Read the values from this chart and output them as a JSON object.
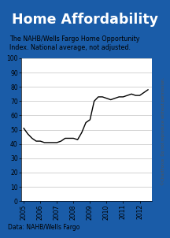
{
  "title": "Home Affordability",
  "subtitle": "The NAHB/Wells Fargo Home Opportunity\nIndex. National average, not adjusted.",
  "footer": "Data: NAHB/Wells Fargo",
  "watermark": "©ChartForce  Do not reproduce without permission.",
  "title_bg": "#1a5ca8",
  "title_color": "#ffffff",
  "border_color": "#1a5ca8",
  "line_color": "#000000",
  "bg_color": "#1a5ca8",
  "plot_bg": "#ffffff",
  "inner_bg": "#ffffff",
  "grid_color": "#cccccc",
  "ylim": [
    0,
    100
  ],
  "yticks": [
    0,
    10,
    20,
    30,
    40,
    50,
    60,
    70,
    80,
    90,
    100
  ],
  "x_labels": [
    "2005",
    "2006",
    "2007",
    "2008",
    "2009",
    "2010",
    "2011",
    "2012"
  ],
  "x_values": [
    2005.0,
    2005.25,
    2005.5,
    2005.75,
    2006.0,
    2006.25,
    2006.5,
    2006.75,
    2007.0,
    2007.25,
    2007.5,
    2007.75,
    2008.0,
    2008.25,
    2008.5,
    2008.75,
    2009.0,
    2009.25,
    2009.5,
    2009.75,
    2010.0,
    2010.25,
    2010.5,
    2010.75,
    2011.0,
    2011.25,
    2011.5,
    2011.75,
    2012.0,
    2012.25,
    2012.5
  ],
  "y_values": [
    51,
    47,
    44,
    42,
    42,
    41,
    41,
    41,
    41,
    42,
    44,
    44,
    44,
    43,
    48,
    55,
    57,
    70,
    73,
    73,
    72,
    71,
    72,
    73,
    73,
    74,
    75,
    74,
    74,
    76,
    78
  ]
}
